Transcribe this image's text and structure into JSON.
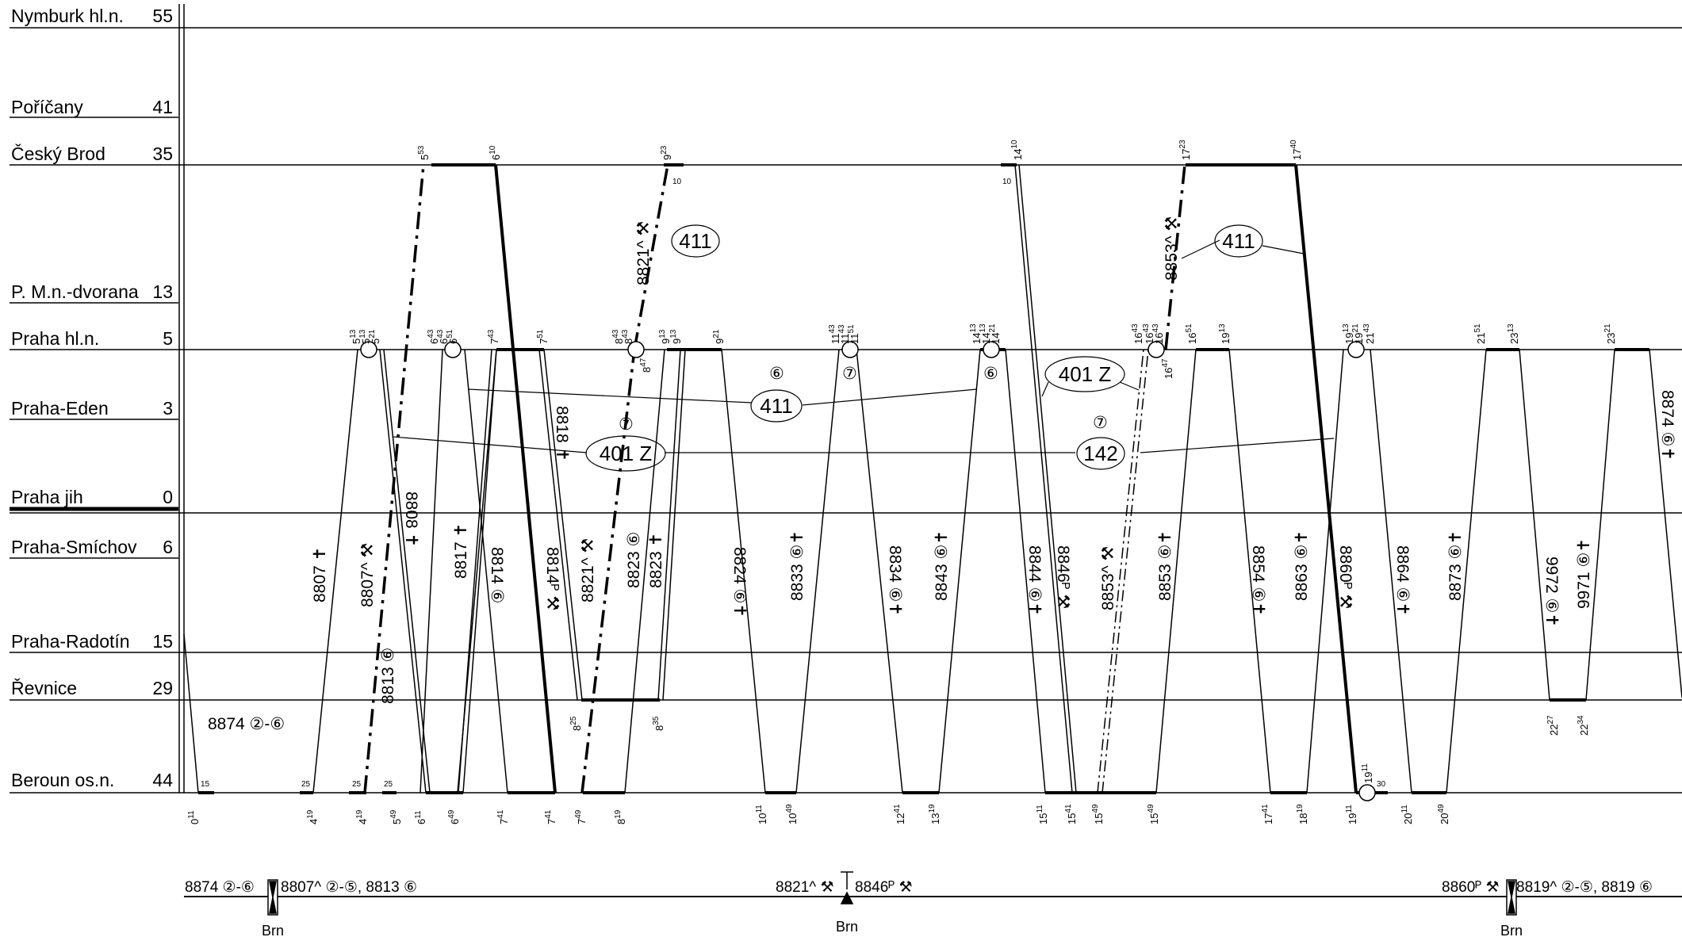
{
  "stations": [
    {
      "name": "Nymburk hl.n.",
      "km": "55"
    },
    {
      "name": "Poříčany",
      "km": "41"
    },
    {
      "name": "Český Brod",
      "km": "35"
    },
    {
      "name": "P. M.n.-dvorana",
      "km": "13"
    },
    {
      "name": "Praha hl.n.",
      "km": "5"
    },
    {
      "name": "Praha-Eden",
      "km": "3"
    },
    {
      "name": "Praha jih",
      "km": "0"
    },
    {
      "name": "Praha-Smíchov",
      "km": "6"
    },
    {
      "name": "Praha-Radotín",
      "km": "15"
    },
    {
      "name": "Řevnice",
      "km": "29"
    },
    {
      "name": "Beroun os.n.",
      "km": "44"
    }
  ],
  "top_times": [
    {
      "h": "5",
      "m": "53"
    },
    {
      "h": "6",
      "m": "10"
    },
    {
      "h": "9",
      "m": "23"
    },
    {
      "h": "14",
      "m": "10"
    },
    {
      "h": "17",
      "m": "23"
    },
    {
      "h": "17",
      "m": "40"
    }
  ],
  "hln_times": [
    {
      "h": "5",
      "m": "13"
    },
    {
      "h": "5",
      "m": "13"
    },
    {
      "h": "5",
      "m": "21"
    },
    {
      "h": "6",
      "m": "43"
    },
    {
      "h": "6",
      "m": "43"
    },
    {
      "h": "6",
      "m": "51"
    },
    {
      "h": "7",
      "m": "43"
    },
    {
      "h": "7",
      "m": "51"
    },
    {
      "h": "8",
      "m": "43"
    },
    {
      "h": "8",
      "m": "43"
    },
    {
      "h": "9",
      "m": "13"
    },
    {
      "h": "9",
      "m": "13"
    },
    {
      "h": "9",
      "m": "21"
    },
    {
      "h": "11",
      "m": "43"
    },
    {
      "h": "11",
      "m": "43"
    },
    {
      "h": "11",
      "m": "51"
    },
    {
      "h": "14",
      "m": "13"
    },
    {
      "h": "14",
      "m": "13"
    },
    {
      "h": "14",
      "m": "21"
    },
    {
      "h": "16",
      "m": "43"
    },
    {
      "h": "16",
      "m": "43"
    },
    {
      "h": "16",
      "m": "43"
    },
    {
      "h": "16",
      "m": "51"
    },
    {
      "h": "19",
      "m": "13"
    },
    {
      "h": "19",
      "m": "13"
    },
    {
      "h": "19",
      "m": "21"
    },
    {
      "h": "21",
      "m": "43"
    },
    {
      "h": "21",
      "m": "51"
    },
    {
      "h": "23",
      "m": "13"
    },
    {
      "h": "23",
      "m": "21"
    }
  ],
  "bottom_times": [
    {
      "h": "0",
      "m": "11"
    },
    {
      "h": "4",
      "m": "19"
    },
    {
      "h": "4",
      "m": "19"
    },
    {
      "h": "5",
      "m": "49"
    },
    {
      "h": "6",
      "m": "11"
    },
    {
      "h": "6",
      "m": "49"
    },
    {
      "h": "7",
      "m": "41"
    },
    {
      "h": "7",
      "m": "41"
    },
    {
      "h": "7",
      "m": "49"
    },
    {
      "h": "8",
      "m": "19"
    },
    {
      "h": "10",
      "m": "11"
    },
    {
      "h": "10",
      "m": "49"
    },
    {
      "h": "12",
      "m": "41"
    },
    {
      "h": "13",
      "m": "19"
    },
    {
      "h": "15",
      "m": "11"
    },
    {
      "h": "15",
      "m": "41"
    },
    {
      "h": "15",
      "m": "49"
    },
    {
      "h": "15",
      "m": "49"
    },
    {
      "h": "17",
      "m": "41"
    },
    {
      "h": "18",
      "m": "19"
    },
    {
      "h": "19",
      "m": "11"
    },
    {
      "h": "20",
      "m": "11"
    },
    {
      "h": "20",
      "m": "49"
    }
  ],
  "revnice_times": [
    {
      "h": "8",
      "m": "25"
    },
    {
      "h": "8",
      "m": "35"
    },
    {
      "h": "22",
      "m": "27"
    },
    {
      "h": "22",
      "m": "34"
    }
  ],
  "minor_marks": [
    "15",
    "25",
    "25",
    "25",
    "10",
    "10",
    "30",
    "8",
    "47",
    "16",
    "47",
    "19",
    "11"
  ],
  "train_labels": [
    "8807 ✝",
    "8807^ ⚒",
    "8808 ✝",
    "8813 ⑥",
    "8817 ✝",
    "8814 ⑥",
    "8814ᴾ ⚒",
    "8818 ✝",
    "8821^ ⚒",
    "8823 ⑥",
    "8823 ✝",
    "8824 ⑥✝",
    "8833 ⑥✝",
    "8834 ⑥✝",
    "8843 ⑥✝",
    "8844 ⑥✝",
    "8846ᴾ ⚒",
    "8853^ ⚒",
    "8853 ⑥✝",
    "8854 ⑥✝",
    "8863 ⑥✝",
    "8860ᴾ ⚒",
    "8864 ⑥✝",
    "8873 ⑥✝",
    "9972 ⑥✝",
    "9971 ⑥✝",
    "8874 ⑥✝",
    "8821^ ⚒",
    "8853^ ⚒",
    "8874 ②-⑥"
  ],
  "bubbles": [
    "411",
    "411",
    "411",
    "401 Z",
    "401 Z",
    "142"
  ],
  "circled_marks": [
    "⑥",
    "⑦",
    "⑥",
    "⑦",
    "⑦"
  ],
  "footer": {
    "left_a": "8874 ②-⑥",
    "left_b": "8807^ ②-⑤, 8813 ⑥",
    "mid_a": "8821^ ⚒",
    "mid_b": "8846ᴾ ⚒",
    "right_a": "8860ᴾ ⚒",
    "right_b": "8819^ ②-⑤, 8819 ⑥",
    "brn": "Brn"
  }
}
